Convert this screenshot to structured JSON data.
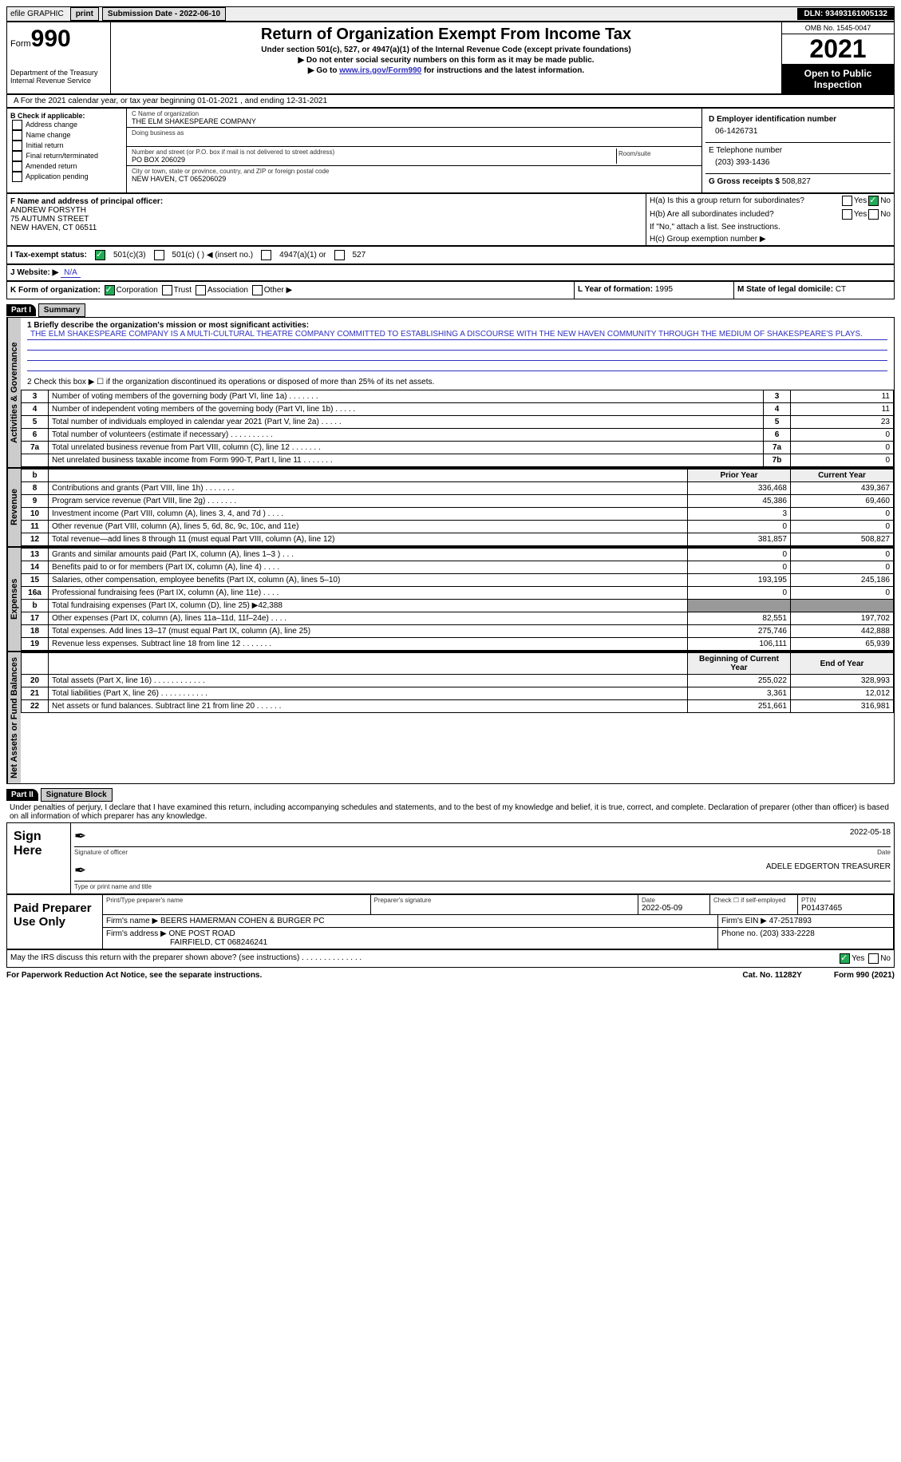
{
  "topbar": {
    "efile": "efile GRAPHIC",
    "print": "print",
    "subdate_label": "Submission Date - 2022-06-10",
    "dln": "DLN: 93493161005132"
  },
  "header": {
    "form_word": "Form",
    "form_num": "990",
    "dept": "Department of the Treasury",
    "irs": "Internal Revenue Service",
    "title": "Return of Organization Exempt From Income Tax",
    "sub1": "Under section 501(c), 527, or 4947(a)(1) of the Internal Revenue Code (except private foundations)",
    "sub2": "▶ Do not enter social security numbers on this form as it may be made public.",
    "sub3_pre": "▶ Go to ",
    "sub3_link": "www.irs.gov/Form990",
    "sub3_post": " for instructions and the latest information.",
    "omb": "OMB No. 1545-0047",
    "year": "2021",
    "otp": "Open to Public Inspection"
  },
  "line_a": "A For the 2021 calendar year, or tax year beginning 01-01-2021   , and ending 12-31-2021",
  "col_b": {
    "label": "B Check if applicable:",
    "items": [
      "Address change",
      "Name change",
      "Initial return",
      "Final return/terminated",
      "Amended return",
      "Application pending"
    ]
  },
  "col_c": {
    "name_lbl": "C Name of organization",
    "name": "THE ELM SHAKESPEARE COMPANY",
    "dba_lbl": "Doing business as",
    "addr_lbl": "Number and street (or P.O. box if mail is not delivered to street address)",
    "room_lbl": "Room/suite",
    "addr": "PO BOX 206029",
    "city_lbl": "City or town, state or province, country, and ZIP or foreign postal code",
    "city": "NEW HAVEN, CT  065206029"
  },
  "col_d": {
    "ein_lbl": "D Employer identification number",
    "ein": "06-1426731",
    "tel_lbl": "E Telephone number",
    "tel": "(203) 393-1436",
    "gross_lbl": "G Gross receipts $",
    "gross": "508,827"
  },
  "f": {
    "label": "F Name and address of principal officer:",
    "name": "ANDREW FORSYTH",
    "street": "75 AUTUMN STREET",
    "city": "NEW HAVEN, CT  06511"
  },
  "h": {
    "a": "H(a)  Is this a group return for subordinates?",
    "b": "H(b)  Are all subordinates included?",
    "note": "If \"No,\" attach a list. See instructions.",
    "c": "H(c)  Group exemption number ▶",
    "yes": "Yes",
    "no": "No"
  },
  "i": {
    "label": "I  Tax-exempt status:",
    "o1": "501(c)(3)",
    "o2": "501(c) (  ) ◀ (insert no.)",
    "o3": "4947(a)(1) or",
    "o4": "527"
  },
  "j": {
    "label": "J  Website: ▶",
    "val": "N/A"
  },
  "k": {
    "label": "K Form of organization:",
    "corp": "Corporation",
    "trust": "Trust",
    "assoc": "Association",
    "other": "Other ▶"
  },
  "l": {
    "label": "L Year of formation:",
    "val": "1995"
  },
  "m": {
    "label": "M State of legal domicile:",
    "val": "CT"
  },
  "part1": {
    "hdr": "Part I",
    "title": "Summary",
    "vlabel_ag": "Activities & Governance",
    "vlabel_rev": "Revenue",
    "vlabel_exp": "Expenses",
    "vlabel_na": "Net Assets or Fund Balances",
    "l1_lbl": "1  Briefly describe the organization's mission or most significant activities:",
    "l1_text": "THE ELM SHAKESPEARE COMPANY IS A MULTI-CULTURAL THEATRE COMPANY COMMITTED TO ESTABLISHING A DISCOURSE WITH THE NEW HAVEN COMMUNITY THROUGH THE MEDIUM OF SHAKESPEARE'S PLAYS.",
    "l2": "2   Check this box ▶ ☐ if the organization discontinued its operations or disposed of more than 25% of its net assets.",
    "rows_ag": [
      {
        "n": "3",
        "t": "Number of voting members of the governing body (Part VI, line 1a)   .    .    .    .    .    .    .",
        "box": "3",
        "v": "11"
      },
      {
        "n": "4",
        "t": "Number of independent voting members of the governing body (Part VI, line 1b)   .    .    .    .    .",
        "box": "4",
        "v": "11"
      },
      {
        "n": "5",
        "t": "Total number of individuals employed in calendar year 2021 (Part V, line 2a)   .    .    .    .    .",
        "box": "5",
        "v": "23"
      },
      {
        "n": "6",
        "t": "Total number of volunteers (estimate if necessary)    .    .    .    .    .    .    .    .    .    .",
        "box": "6",
        "v": "0"
      },
      {
        "n": "7a",
        "t": "Total unrelated business revenue from Part VIII, column (C), line 12    .    .    .    .    .    .    .",
        "box": "7a",
        "v": "0"
      },
      {
        "n": "",
        "t": "Net unrelated business taxable income from Form 990-T, Part I, line 11   .    .    .    .    .    .    .",
        "box": "7b",
        "v": "0"
      }
    ],
    "col_hdr": {
      "b": "b",
      "py": "Prior Year",
      "cy": "Current Year"
    },
    "rows_rev": [
      {
        "n": "8",
        "t": "Contributions and grants (Part VIII, line 1h)    .    .    .    .    .    .    .",
        "py": "336,468",
        "cy": "439,367"
      },
      {
        "n": "9",
        "t": "Program service revenue (Part VIII, line 2g)    .    .    .    .    .    .    .",
        "py": "45,386",
        "cy": "69,460"
      },
      {
        "n": "10",
        "t": "Investment income (Part VIII, column (A), lines 3, 4, and 7d )    .    .    .    .",
        "py": "3",
        "cy": "0"
      },
      {
        "n": "11",
        "t": "Other revenue (Part VIII, column (A), lines 5, 6d, 8c, 9c, 10c, and 11e)",
        "py": "0",
        "cy": "0"
      },
      {
        "n": "12",
        "t": "Total revenue—add lines 8 through 11 (must equal Part VIII, column (A), line 12)",
        "py": "381,857",
        "cy": "508,827"
      }
    ],
    "rows_exp": [
      {
        "n": "13",
        "t": "Grants and similar amounts paid (Part IX, column (A), lines 1–3 )   .    .    .",
        "py": "0",
        "cy": "0"
      },
      {
        "n": "14",
        "t": "Benefits paid to or for members (Part IX, column (A), line 4)   .    .    .    .",
        "py": "0",
        "cy": "0"
      },
      {
        "n": "15",
        "t": "Salaries, other compensation, employee benefits (Part IX, column (A), lines 5–10)",
        "py": "193,195",
        "cy": "245,186"
      },
      {
        "n": "16a",
        "t": "Professional fundraising fees (Part IX, column (A), line 11e)    .    .    .    .",
        "py": "0",
        "cy": "0"
      },
      {
        "n": "b",
        "t": "Total fundraising expenses (Part IX, column (D), line 25) ▶42,388",
        "py": "grey",
        "cy": "grey"
      },
      {
        "n": "17",
        "t": "Other expenses (Part IX, column (A), lines 11a–11d, 11f–24e)    .    .    .    .",
        "py": "82,551",
        "cy": "197,702"
      },
      {
        "n": "18",
        "t": "Total expenses. Add lines 13–17 (must equal Part IX, column (A), line 25)",
        "py": "275,746",
        "cy": "442,888"
      },
      {
        "n": "19",
        "t": "Revenue less expenses. Subtract line 18 from line 12   .    .    .    .    .    .    .",
        "py": "106,111",
        "cy": "65,939"
      }
    ],
    "na_hdr": {
      "b": "Beginning of Current Year",
      "e": "End of Year"
    },
    "rows_na": [
      {
        "n": "20",
        "t": "Total assets (Part X, line 16)   .    .    .    .    .    .    .    .    .    .    .    .",
        "py": "255,022",
        "cy": "328,993"
      },
      {
        "n": "21",
        "t": "Total liabilities (Part X, line 26)    .    .    .    .    .    .    .    .    .    .    .",
        "py": "3,361",
        "cy": "12,012"
      },
      {
        "n": "22",
        "t": "Net assets or fund balances. Subtract line 21 from line 20   .    .    .    .    .    .",
        "py": "251,661",
        "cy": "316,981"
      }
    ]
  },
  "part2": {
    "hdr": "Part II",
    "title": "Signature Block",
    "decl": "Under penalties of perjury, I declare that I have examined this return, including accompanying schedules and statements, and to the best of my knowledge and belief, it is true, correct, and complete. Declaration of preparer (other than officer) is based on all information of which preparer has any knowledge."
  },
  "sign": {
    "label": "Sign Here",
    "sig_lbl": "Signature of officer",
    "date": "2022-05-18",
    "date_lbl": "Date",
    "name": "ADELE EDGERTON  TREASURER",
    "name_lbl": "Type or print name and title"
  },
  "prep": {
    "label": "Paid Preparer Use Only",
    "r1": {
      "c1": "Print/Type preparer's name",
      "c2": "Preparer's signature",
      "c3_lbl": "Date",
      "c3": "2022-05-09",
      "c4": "Check ☐ if self-employed",
      "c5_lbl": "PTIN",
      "c5": "P01437465"
    },
    "r2": {
      "firm_lbl": "Firm's name    ▶",
      "firm": "BEERS HAMERMAN COHEN & BURGER PC",
      "ein_lbl": "Firm's EIN ▶",
      "ein": "47-2517893"
    },
    "r3": {
      "addr_lbl": "Firm's address ▶",
      "addr1": "ONE POST ROAD",
      "addr2": "FAIRFIELD, CT  068246241",
      "ph_lbl": "Phone no.",
      "ph": "(203) 333-2228"
    }
  },
  "may": {
    "q": "May the IRS discuss this return with the preparer shown above? (see instructions)    .    .    .    .    .    .    .    .    .    .    .    .    .    .",
    "yes": "Yes",
    "no": "No"
  },
  "footer": {
    "l": "For Paperwork Reduction Act Notice, see the separate instructions.",
    "c": "Cat. No. 11282Y",
    "r": "Form 990 (2021)"
  }
}
